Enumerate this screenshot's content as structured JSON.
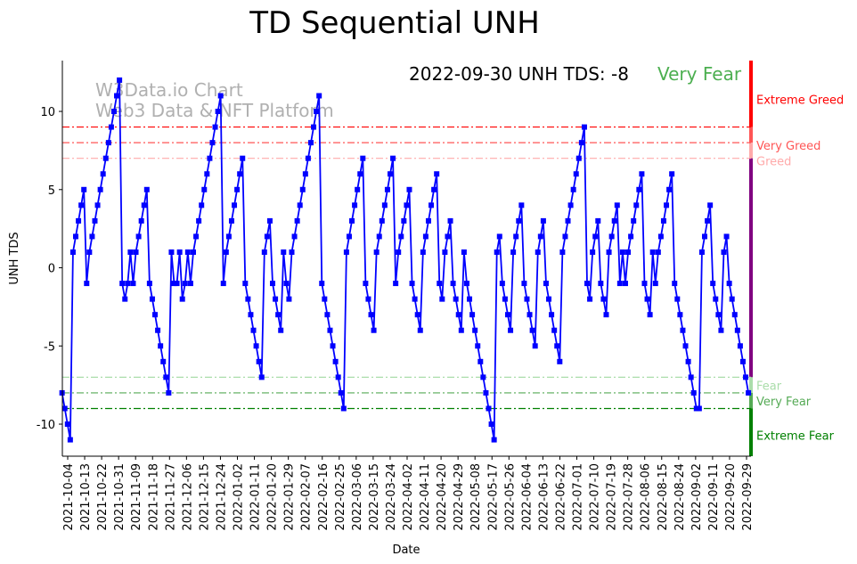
{
  "chart_data": {
    "type": "line",
    "title": "TD Sequential UNH",
    "subtitle": "2022-09-30 UNH TDS: -8",
    "status": "Very Fear",
    "watermark": [
      "W3Data.io Chart",
      "Web3 Data & NFT Platform"
    ],
    "xlabel": "Date",
    "ylabel": "UNH TDS",
    "date_range": [
      "2021-10-01",
      "2022-09-30"
    ],
    "ylim": [
      -12.05,
      13.25
    ],
    "yticks": [
      10,
      5,
      0,
      -5,
      -10
    ],
    "xticks": [
      "2021-10-04",
      "2021-10-13",
      "2021-10-22",
      "2021-10-31",
      "2021-11-09",
      "2021-11-18",
      "2021-11-27",
      "2021-12-06",
      "2021-12-15",
      "2021-12-24",
      "2022-01-02",
      "2022-01-11",
      "2022-01-20",
      "2022-01-29",
      "2022-02-07",
      "2022-02-16",
      "2022-02-25",
      "2022-03-06",
      "2022-03-15",
      "2022-03-24",
      "2022-04-02",
      "2022-04-11",
      "2022-04-20",
      "2022-04-29",
      "2022-05-08",
      "2022-05-17",
      "2022-05-26",
      "2022-06-04",
      "2022-06-13",
      "2022-06-22",
      "2022-07-01",
      "2022-07-10",
      "2022-07-19",
      "2022-07-28",
      "2022-08-06",
      "2022-08-15",
      "2022-08-24",
      "2022-09-02",
      "2022-09-11",
      "2022-09-20",
      "2022-09-29"
    ],
    "levels": [
      {
        "value": 9,
        "label": "Extreme Greed",
        "color": "#ff0000"
      },
      {
        "value": 8,
        "label": "Very Greed",
        "color": "#ff5555"
      },
      {
        "value": 7,
        "label": "Greed",
        "color": "#ffaaaa"
      },
      {
        "value": -7,
        "label": "Fear",
        "color": "#aaddaa"
      },
      {
        "value": -8,
        "label": "Very Fear",
        "color": "#55aa55"
      },
      {
        "value": -9,
        "label": "Extreme Fear",
        "color": "#008000"
      }
    ],
    "series": [
      {
        "name": "UNH TDS",
        "color": "#0000ff",
        "values": [
          -8,
          -9,
          -10,
          -11,
          1,
          2,
          3,
          4,
          5,
          -1,
          1,
          2,
          3,
          4,
          5,
          6,
          7,
          8,
          9,
          10,
          11,
          12,
          -1,
          -2,
          -1,
          1,
          -1,
          1,
          2,
          3,
          4,
          5,
          -1,
          -2,
          -3,
          -4,
          -5,
          -6,
          -7,
          -8,
          1,
          -1,
          -1,
          1,
          -2,
          -1,
          1,
          -1,
          1,
          2,
          3,
          4,
          5,
          6,
          7,
          8,
          9,
          10,
          11,
          -1,
          1,
          2,
          3,
          4,
          5,
          6,
          7,
          -1,
          -2,
          -3,
          -4,
          -5,
          -6,
          -7,
          1,
          2,
          3,
          -1,
          -2,
          -3,
          -4,
          1,
          -1,
          -2,
          1,
          2,
          3,
          4,
          5,
          6,
          7,
          8,
          9,
          10,
          11,
          -1,
          -2,
          -3,
          -4,
          -5,
          -6,
          -7,
          -8,
          -9,
          1,
          2,
          3,
          4,
          5,
          6,
          7,
          -1,
          -2,
          -3,
          -4,
          1,
          2,
          3,
          4,
          5,
          6,
          7,
          -1,
          1,
          2,
          3,
          4,
          5,
          -1,
          -2,
          -3,
          -4,
          1,
          2,
          3,
          4,
          5,
          6,
          -1,
          -2,
          1,
          2,
          3,
          -1,
          -2,
          -3,
          -4,
          1,
          -1,
          -2,
          -3,
          -4,
          -5,
          -6,
          -7,
          -8,
          -9,
          -10,
          -11,
          1,
          2,
          -1,
          -2,
          -3,
          -4,
          1,
          2,
          3,
          4,
          -1,
          -2,
          -3,
          -4,
          -5,
          1,
          2,
          3,
          -1,
          -2,
          -3,
          -4,
          -5,
          -6,
          1,
          2,
          3,
          4,
          5,
          6,
          7,
          8,
          9,
          -1,
          -2,
          1,
          2,
          3,
          -1,
          -2,
          -3,
          1,
          2,
          3,
          4,
          -1,
          1,
          -1,
          1,
          2,
          3,
          4,
          5,
          6,
          -1,
          -2,
          -3,
          1,
          -1,
          1,
          2,
          3,
          4,
          5,
          6,
          -1,
          -2,
          -3,
          -4,
          -5,
          -6,
          -7,
          -8,
          -9,
          -9,
          1,
          2,
          3,
          4,
          -1,
          -2,
          -3,
          -4,
          1,
          2,
          -1,
          -2,
          -3,
          -4,
          -5,
          -6,
          -7,
          -8
        ]
      }
    ],
    "grid": false
  }
}
